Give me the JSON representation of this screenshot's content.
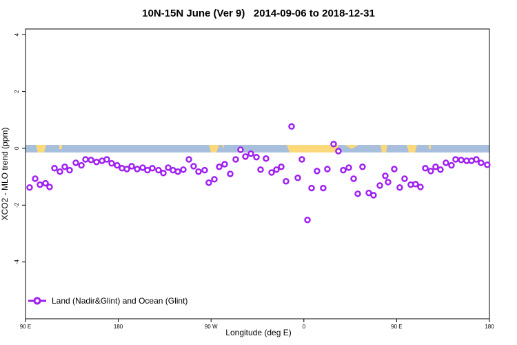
{
  "chart_data": {
    "type": "line",
    "title": "10N-15N June (Ver 9)   2014-09-06 to 2018-12-31",
    "x_label": "Longitude (deg E)",
    "y_label": "XCO2 - MLO trend (ppm)",
    "x": [
      94.0,
      99.4,
      104.0,
      109.4,
      113.4,
      118.1,
      123.4,
      128.1,
      132.8,
      138.8,
      144.2,
      148.2,
      153.5,
      158.9,
      164.2,
      168.9,
      173.6,
      178.9,
      183.6,
      188.3,
      193.0,
      198.3,
      203.7,
      208.3,
      213.0,
      219.0,
      223.7,
      228.4,
      233.1,
      237.8,
      243.1,
      248.5,
      253.1,
      257.8,
      263.8,
      267.8,
      273.2,
      277.9,
      283.2,
      288.6,
      293.9,
      298.6,
      303.3,
      308.6,
      314.0,
      318.0,
      323.3,
      328.7,
      333.4,
      338.1,
      342.7,
      348.1,
      354.1,
      358.1,
      363.5,
      367.5,
      372.8,
      378.8,
      382.8,
      388.9,
      393.5,
      398.2,
      403.6,
      408.3,
      412.3,
      416.9,
      423.0,
      427.6,
      433.7,
      439.0,
      441.7,
      447.7,
      453.0,
      457.7,
      463.7,
      468.4,
      473.1,
      477.8,
      483.1,
      487.8,
      492.5,
      497.8,
      503.2,
      507.2,
      512.6,
      517.9,
      522.6,
      527.3,
      531.9,
      537.9
    ],
    "series": [
      {
        "name": "Land (Nadir&Glint) and Ocean (Glint)",
        "color": "#a020f0",
        "values": [
          -1.38,
          -1.07,
          -1.28,
          -1.23,
          -1.36,
          -0.7,
          -0.82,
          -0.65,
          -0.77,
          -0.51,
          -0.6,
          -0.39,
          -0.41,
          -0.48,
          -0.44,
          -0.39,
          -0.53,
          -0.6,
          -0.7,
          -0.73,
          -0.63,
          -0.73,
          -0.68,
          -0.77,
          -0.7,
          -0.77,
          -0.87,
          -0.68,
          -0.77,
          -0.82,
          -0.75,
          -0.39,
          -0.63,
          -0.82,
          -0.77,
          -1.21,
          -1.09,
          -0.65,
          -0.56,
          -0.9,
          -0.39,
          -0.05,
          -0.29,
          -0.19,
          -0.31,
          -0.75,
          -0.36,
          -0.85,
          -0.75,
          -0.65,
          -1.16,
          0.77,
          -1.04,
          -0.39,
          -2.52,
          -1.4,
          -0.8,
          -1.4,
          -0.73,
          0.15,
          -0.1,
          -0.77,
          -0.68,
          -1.07,
          -1.6,
          -0.65,
          -1.57,
          -1.65,
          -1.31,
          -0.97,
          -1.19,
          -0.73,
          -1.38,
          -1.07,
          -1.28,
          -1.26,
          -1.36,
          -0.7,
          -0.8,
          -0.65,
          -0.75,
          -0.51,
          -0.6,
          -0.39,
          -0.41,
          -0.44,
          -0.44,
          -0.39,
          -0.51,
          -0.58
        ]
      }
    ],
    "xlim": [
      90,
      540
    ],
    "xticks": [
      {
        "value": 90,
        "label": "90 E"
      },
      180,
      {
        "value": 270,
        "label": "90 W"
      },
      {
        "value": 360,
        "label": "0"
      },
      {
        "value": 450,
        "label": "90 E"
      },
      {
        "value": 540,
        "label": "180"
      }
    ],
    "ylim": [
      -6,
      4.2
    ],
    "yticks": [
      -4,
      -2,
      0,
      2,
      4
    ],
    "legend": "bottom-left"
  }
}
